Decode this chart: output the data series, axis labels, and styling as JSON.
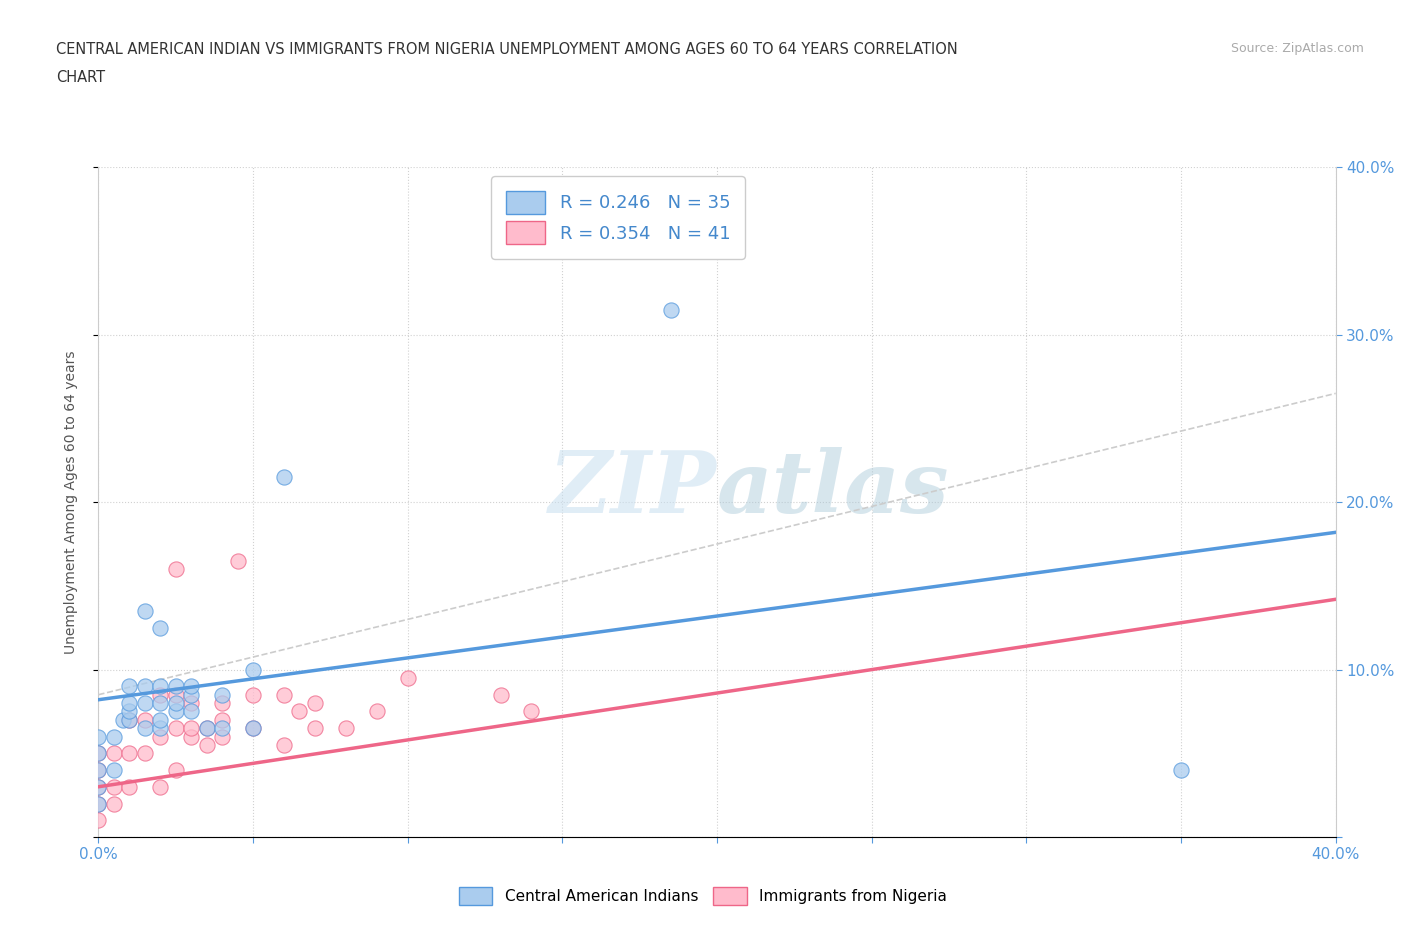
{
  "title_line1": "CENTRAL AMERICAN INDIAN VS IMMIGRANTS FROM NIGERIA UNEMPLOYMENT AMONG AGES 60 TO 64 YEARS CORRELATION",
  "title_line2": "CHART",
  "source_text": "Source: ZipAtlas.com",
  "ylabel": "Unemployment Among Ages 60 to 64 years",
  "xlim": [
    0.0,
    0.4
  ],
  "ylim": [
    0.0,
    0.4
  ],
  "blue_scatter_x": [
    0.0,
    0.0,
    0.0,
    0.0,
    0.0,
    0.005,
    0.005,
    0.008,
    0.01,
    0.01,
    0.01,
    0.01,
    0.015,
    0.015,
    0.015,
    0.02,
    0.02,
    0.02,
    0.02,
    0.025,
    0.025,
    0.025,
    0.03,
    0.03,
    0.03,
    0.035,
    0.04,
    0.04,
    0.05,
    0.05,
    0.06,
    0.185,
    0.35,
    0.02,
    0.015
  ],
  "blue_scatter_y": [
    0.02,
    0.03,
    0.04,
    0.05,
    0.06,
    0.04,
    0.06,
    0.07,
    0.07,
    0.075,
    0.08,
    0.09,
    0.065,
    0.08,
    0.09,
    0.065,
    0.07,
    0.08,
    0.09,
    0.075,
    0.08,
    0.09,
    0.075,
    0.085,
    0.09,
    0.065,
    0.085,
    0.065,
    0.1,
    0.065,
    0.215,
    0.315,
    0.04,
    0.125,
    0.135
  ],
  "pink_scatter_x": [
    0.0,
    0.0,
    0.0,
    0.0,
    0.0,
    0.005,
    0.005,
    0.005,
    0.01,
    0.01,
    0.01,
    0.015,
    0.015,
    0.02,
    0.02,
    0.02,
    0.025,
    0.025,
    0.025,
    0.03,
    0.03,
    0.035,
    0.04,
    0.04,
    0.045,
    0.05,
    0.05,
    0.06,
    0.06,
    0.065,
    0.07,
    0.07,
    0.08,
    0.09,
    0.1,
    0.13,
    0.14,
    0.025,
    0.03,
    0.035,
    0.04
  ],
  "pink_scatter_y": [
    0.01,
    0.02,
    0.03,
    0.04,
    0.05,
    0.02,
    0.03,
    0.05,
    0.03,
    0.05,
    0.07,
    0.05,
    0.07,
    0.03,
    0.06,
    0.085,
    0.04,
    0.065,
    0.085,
    0.06,
    0.08,
    0.065,
    0.06,
    0.08,
    0.165,
    0.065,
    0.085,
    0.055,
    0.085,
    0.075,
    0.065,
    0.08,
    0.065,
    0.075,
    0.095,
    0.085,
    0.075,
    0.16,
    0.065,
    0.055,
    0.07
  ],
  "blue_color": "#aaccee",
  "pink_color": "#ffbbcc",
  "blue_line_color": "#5599dd",
  "pink_line_color": "#ee6688",
  "dashed_line_color": "#cccccc",
  "R_blue": 0.246,
  "N_blue": 35,
  "R_pink": 0.354,
  "N_pink": 41,
  "legend_blue_label": "R = 0.246   N = 35",
  "legend_pink_label": "R = 0.354   N = 41",
  "scatter_blue_label": "Central American Indians",
  "scatter_pink_label": "Immigrants from Nigeria",
  "watermark_ZIP": "ZIP",
  "watermark_atlas": "atlas",
  "background_color": "#ffffff",
  "grid_color": "#cccccc"
}
